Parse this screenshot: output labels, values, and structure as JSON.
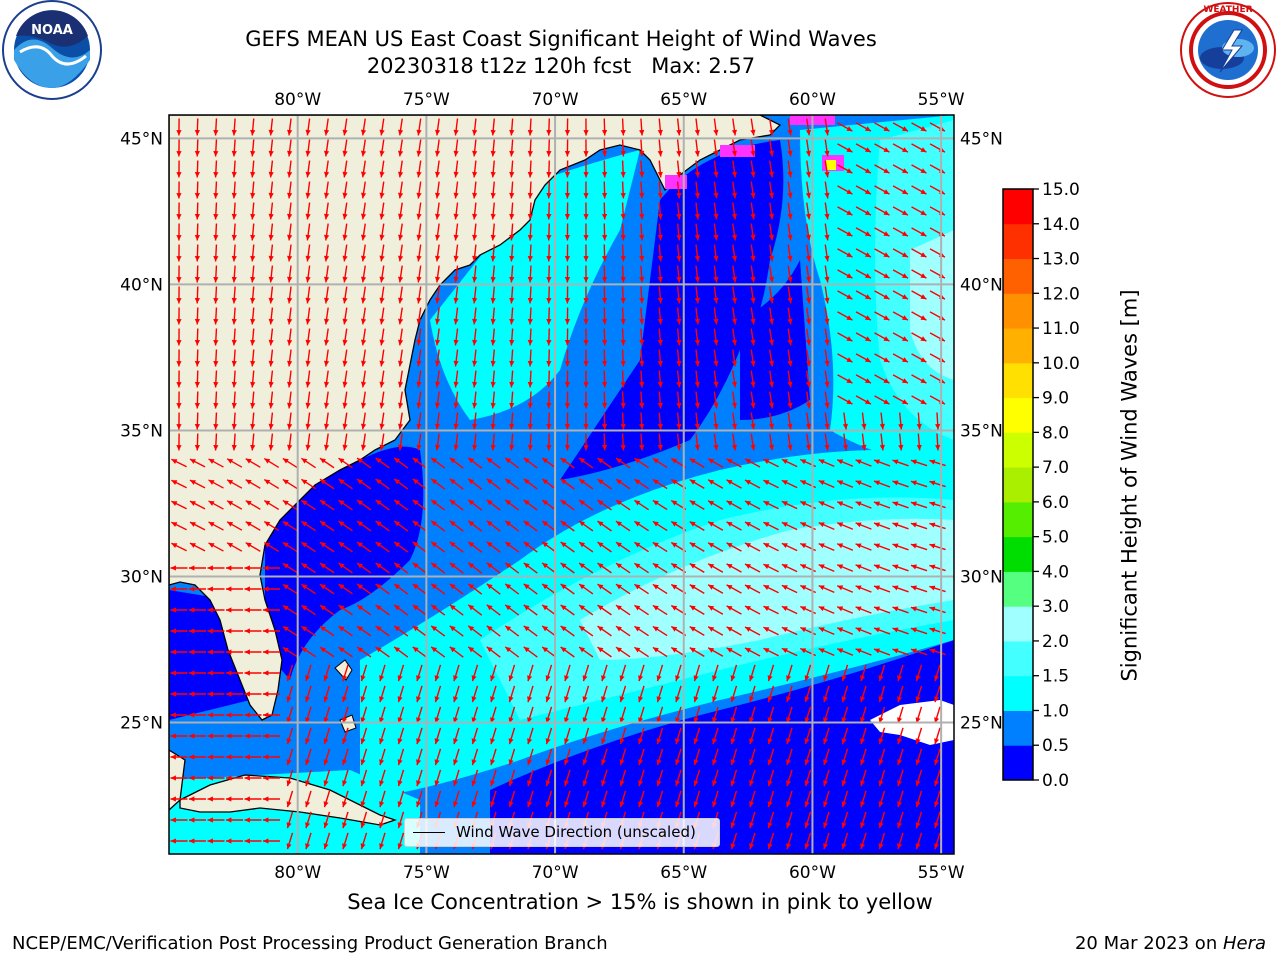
{
  "title": {
    "line1": "GEFS MEAN US East Coast Significant Height of Wind Waves",
    "line2": "20230318 t12z 120h fcst   Max: 2.57"
  },
  "logos": {
    "left": {
      "name": "noaa-logo",
      "text": "NOAA",
      "ring_text": "NATIONAL OCEANIC AND ATMOSPHERIC ADMINISTRATION · U.S. DEPARTMENT OF COMMERCE"
    },
    "right": {
      "name": "nws-logo",
      "ring_text": "NATIONAL WEATHER SERVICE"
    }
  },
  "map": {
    "lon_range": [
      -85,
      -54.5
    ],
    "lat_range": [
      20.5,
      45.8
    ],
    "lon_ticks": [
      -80,
      -75,
      -70,
      -65,
      -60,
      -55
    ],
    "lat_ticks": [
      45,
      40,
      35,
      30,
      25
    ],
    "lon_tick_labels": [
      "80°W",
      "75°W",
      "70°W",
      "65°W",
      "60°W",
      "55°W"
    ],
    "lat_tick_labels": [
      "45°N",
      "40°N",
      "35°N",
      "30°N",
      "25°N"
    ],
    "gridlines": true,
    "land_color": "#efefdc",
    "arrow_color": "#ff0000",
    "ice_color": "#ff33ff",
    "legend_text": "Wind Wave Direction (unscaled)",
    "legend_position": "lower-center"
  },
  "colorbar": {
    "title": "Significant Height of Wind Waves [m]",
    "tick_labels": [
      "0.0",
      "0.5",
      "1.0",
      "1.5",
      "2.0",
      "3.0",
      "4.0",
      "5.0",
      "6.0",
      "7.0",
      "8.0",
      "9.0",
      "10.0",
      "11.0",
      "12.0",
      "13.0",
      "14.0",
      "15.0"
    ],
    "colors": [
      "#0000ff",
      "#0080ff",
      "#00ffff",
      "#44ffff",
      "#a0ffff",
      "#55ff80",
      "#00dd00",
      "#55ee00",
      "#aaee00",
      "#ccff00",
      "#ffff00",
      "#ffe000",
      "#ffb000",
      "#ff9000",
      "#ff6000",
      "#ff3000",
      "#ff0000"
    ]
  },
  "footer": {
    "sea_ice_note": "Sea Ice Concentration > 15% is shown in pink to yellow",
    "left": "NCEP/EMC/Verification Post Processing Product Generation Branch",
    "right_date": "20 Mar 2023 on ",
    "right_host": "Hera"
  }
}
